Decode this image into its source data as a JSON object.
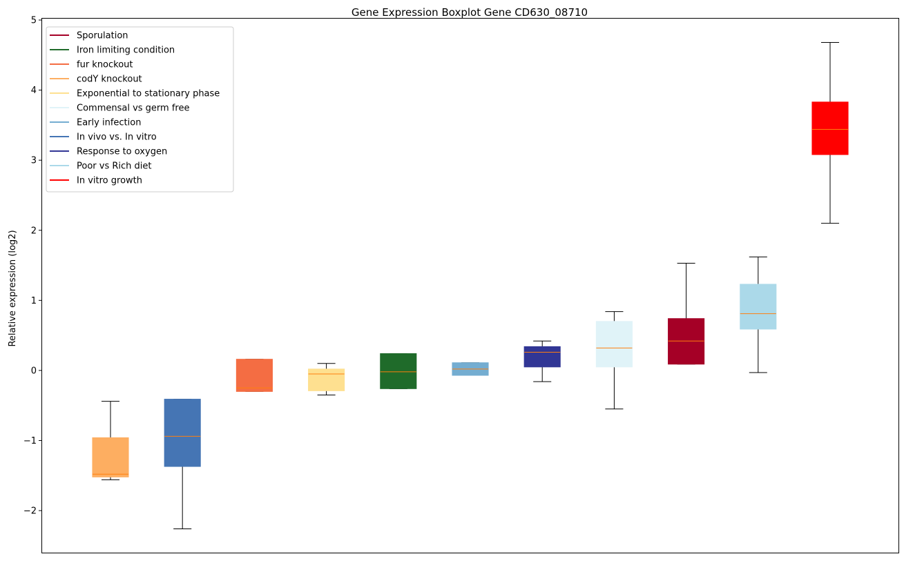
{
  "chart_data": {
    "type": "boxplot",
    "title": "Gene Expression Boxplot Gene CD630_08710",
    "xlabel": "",
    "ylabel": "Relative expression (log2)",
    "ylim": [
      -2.6,
      5.02
    ],
    "yticks": [
      -2,
      -1,
      0,
      1,
      2,
      3,
      4,
      5
    ],
    "ytick_labels": [
      "−2",
      "−1",
      "0",
      "1",
      "2",
      "3",
      "4",
      "5"
    ],
    "grid": false,
    "legend_position": "upper-left",
    "median_color": "#ff7f0e",
    "legend": [
      {
        "label": "Sporulation",
        "color": "#a50026"
      },
      {
        "label": "Iron limiting condition",
        "color": "#1f6b2a"
      },
      {
        "label": "fur knockout",
        "color": "#f46d43"
      },
      {
        "label": "codY knockout",
        "color": "#fdae61"
      },
      {
        "label": "Exponential to stationary phase",
        "color": "#fee090"
      },
      {
        "label": "Commensal vs germ free",
        "color": "#e0f3f8"
      },
      {
        "label": "Early infection",
        "color": "#74add1"
      },
      {
        "label": "In vivo vs. In vitro",
        "color": "#4575b4"
      },
      {
        "label": "Response to oxygen",
        "color": "#313695"
      },
      {
        "label": "Poor vs Rich diet",
        "color": "#abd9e9"
      },
      {
        "label": "In vitro growth",
        "color": "#ff0000"
      }
    ],
    "boxes": [
      {
        "group": "codY knockout",
        "color": "#fdae61",
        "whislo": -1.56,
        "q1": -1.52,
        "med": -1.48,
        "q3": -0.96,
        "whishi": -0.44
      },
      {
        "group": "In vivo vs. In vitro",
        "color": "#4575b4",
        "whislo": -2.26,
        "q1": -1.37,
        "med": -0.94,
        "q3": -0.41,
        "whishi": -0.41
      },
      {
        "group": "fur knockout",
        "color": "#f46d43",
        "whislo": -0.3,
        "q1": -0.3,
        "med": -0.25,
        "q3": 0.16,
        "whishi": 0.16
      },
      {
        "group": "Exponential to stationary phase",
        "color": "#fee090",
        "whislo": -0.35,
        "q1": -0.29,
        "med": -0.05,
        "q3": 0.02,
        "whishi": 0.1
      },
      {
        "group": "Iron limiting condition",
        "color": "#1f6b2a",
        "whislo": -0.26,
        "q1": -0.26,
        "med": -0.02,
        "q3": 0.24,
        "whishi": 0.24
      },
      {
        "group": "Early infection",
        "color": "#74add1",
        "whislo": -0.07,
        "q1": -0.07,
        "med": 0.02,
        "q3": 0.11,
        "whishi": 0.11
      },
      {
        "group": "Response to oxygen",
        "color": "#313695",
        "whislo": -0.16,
        "q1": 0.05,
        "med": 0.26,
        "q3": 0.34,
        "whishi": 0.42
      },
      {
        "group": "Commensal vs germ free",
        "color": "#e0f3f8",
        "whislo": -0.55,
        "q1": 0.05,
        "med": 0.32,
        "q3": 0.7,
        "whishi": 0.84
      },
      {
        "group": "Sporulation",
        "color": "#a50026",
        "whislo": 0.09,
        "q1": 0.09,
        "med": 0.42,
        "q3": 0.74,
        "whishi": 1.53
      },
      {
        "group": "Poor vs Rich diet",
        "color": "#abd9e9",
        "whislo": -0.03,
        "q1": 0.59,
        "med": 0.81,
        "q3": 1.23,
        "whishi": 1.62
      },
      {
        "group": "In vitro growth",
        "color": "#ff0000",
        "whislo": 2.1,
        "q1": 3.08,
        "med": 3.44,
        "q3": 3.83,
        "whishi": 4.68
      }
    ]
  }
}
